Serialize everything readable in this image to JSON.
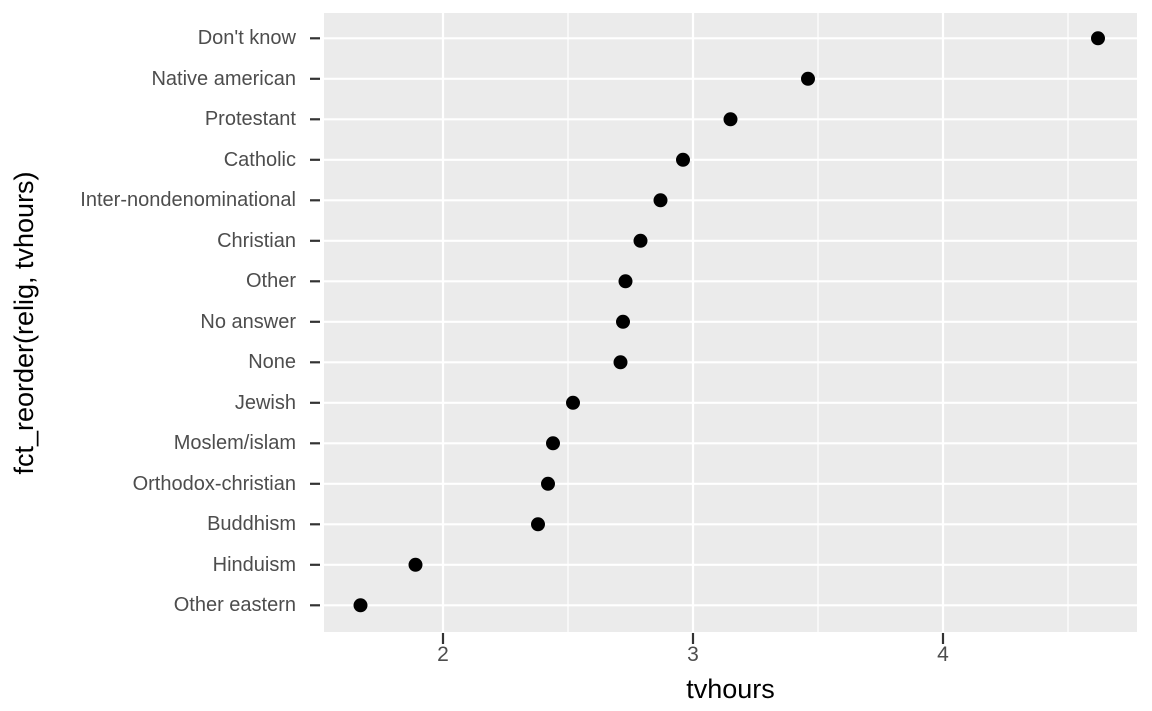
{
  "chart_data": {
    "type": "scatter",
    "subtype": "horizontal-dot-plot",
    "title": "",
    "xlabel": "tvhours",
    "ylabel": "fct_reorder(relig, tvhours)",
    "categories": [
      "Don't know",
      "Native american",
      "Protestant",
      "Catholic",
      "Inter-nondenominational",
      "Christian",
      "Other",
      "No answer",
      "None",
      "Jewish",
      "Moslem/islam",
      "Orthodox-christian",
      "Buddhism",
      "Hinduism",
      "Other eastern"
    ],
    "values": [
      4.62,
      3.46,
      3.15,
      2.96,
      2.87,
      2.79,
      2.73,
      2.72,
      2.71,
      2.52,
      2.44,
      2.42,
      2.38,
      1.89,
      1.67
    ],
    "x_ticks": [
      2,
      3,
      4
    ],
    "x_minor_ticks": [
      2.5,
      3.5,
      4.5
    ],
    "xlim": [
      1.5225,
      4.7675
    ],
    "grid": "on",
    "legend": "none",
    "style": {
      "figure_background": "#FFFFFF",
      "panel_background": "#EBEBEB",
      "gridline_color": "#FFFFFF",
      "point_color": "#000000",
      "tick_label_color": "#4D4D4D",
      "axis_title_color": "#000000",
      "tick_mark_color": "#333333"
    }
  }
}
